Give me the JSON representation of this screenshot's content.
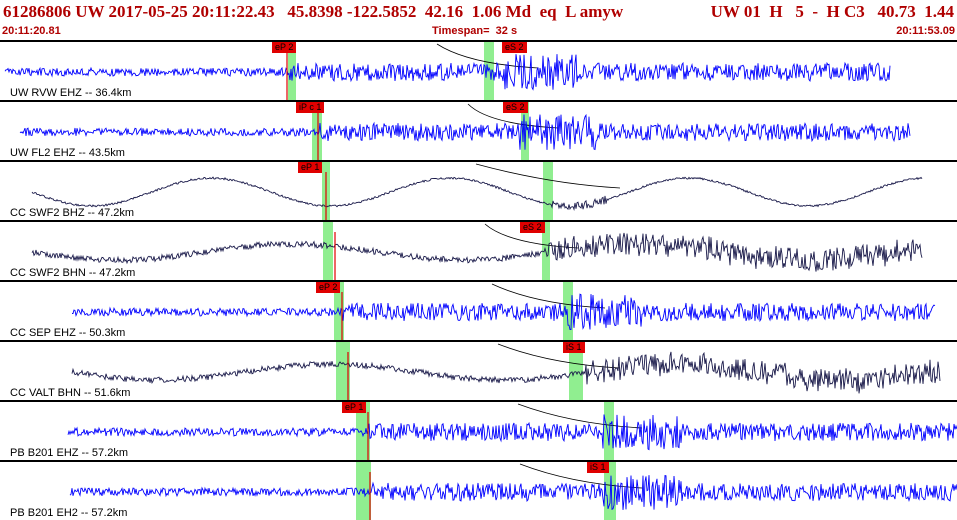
{
  "header": {
    "event_info": "61286806 UW 2017-05-25 20:11:22.43   45.8398 -122.5852  42.16  1.06 Md  eq  L amyw",
    "solution_info": "UW 01  H   5  -  H C3   40.73  1.44"
  },
  "time_bar": {
    "start_time": "20:11:20.81",
    "timespan": "Timespan=  32 s",
    "end_time": "20:11:53.09"
  },
  "colors": {
    "header_text": "#b00000",
    "trace_blue": "#0000ff",
    "trace_dark": "#1a1a4a",
    "pick_red": "#e00000",
    "window_green": "#90ee90"
  },
  "channels": [
    {
      "label": "UW RVW EHZ -- 36.4km",
      "picks": [
        "eP 2",
        "eS 2"
      ],
      "trace_color": "blue"
    },
    {
      "label": "UW FL2 EHZ -- 43.5km",
      "picks": [
        "iP c 1",
        "eS 2"
      ],
      "trace_color": "blue"
    },
    {
      "label": "CC SWF2 BHZ -- 47.2km",
      "picks": [
        "eP 1"
      ],
      "trace_color": "dark"
    },
    {
      "label": "CC SWF2 BHN -- 47.2km",
      "picks": [
        "eS 2"
      ],
      "trace_color": "dark"
    },
    {
      "label": "CC SEP EHZ -- 50.3km",
      "picks": [
        "eP 2"
      ],
      "trace_color": "blue"
    },
    {
      "label": "CC VALT BHN -- 51.6km",
      "picks": [
        "iS 1"
      ],
      "trace_color": "dark"
    },
    {
      "label": "PB B201 EHZ -- 57.2km",
      "picks": [
        "eP 1"
      ],
      "trace_color": "blue"
    },
    {
      "label": "PB B201 EH2 -- 57.2km",
      "picks": [
        "iS 1"
      ],
      "trace_color": "blue"
    }
  ]
}
